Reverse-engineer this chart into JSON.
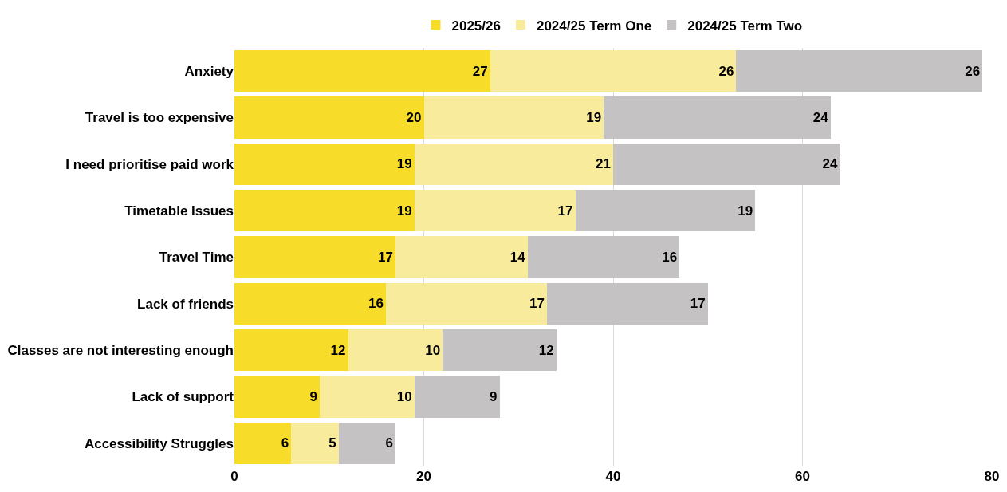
{
  "chart_data": {
    "type": "bar",
    "orientation": "horizontal",
    "stacked": true,
    "data_labels": true,
    "grid": "x",
    "legend": "top",
    "categories": [
      "Anxiety",
      "Travel is too expensive",
      "I need prioritise paid work",
      "Timetable Issues",
      "Travel Time",
      "Lack of friends",
      "Classes are not interesting enough",
      "Lack of support",
      "Accessibility Struggles"
    ],
    "series": [
      {
        "name": "2025/26",
        "color": "#f7dc2a",
        "values": [
          27,
          20,
          19,
          19,
          17,
          16,
          12,
          9,
          6
        ]
      },
      {
        "name": "2024/25 Term One",
        "color": "#f9eb9c",
        "values": [
          26,
          19,
          21,
          17,
          14,
          17,
          10,
          10,
          5
        ]
      },
      {
        "name": "2024/25 Term Two",
        "color": "#c4c2c3",
        "values": [
          26,
          24,
          24,
          19,
          16,
          17,
          12,
          9,
          6
        ]
      }
    ],
    "xlim": [
      0,
      80
    ],
    "xticks": [
      0,
      20,
      40,
      60,
      80
    ]
  }
}
